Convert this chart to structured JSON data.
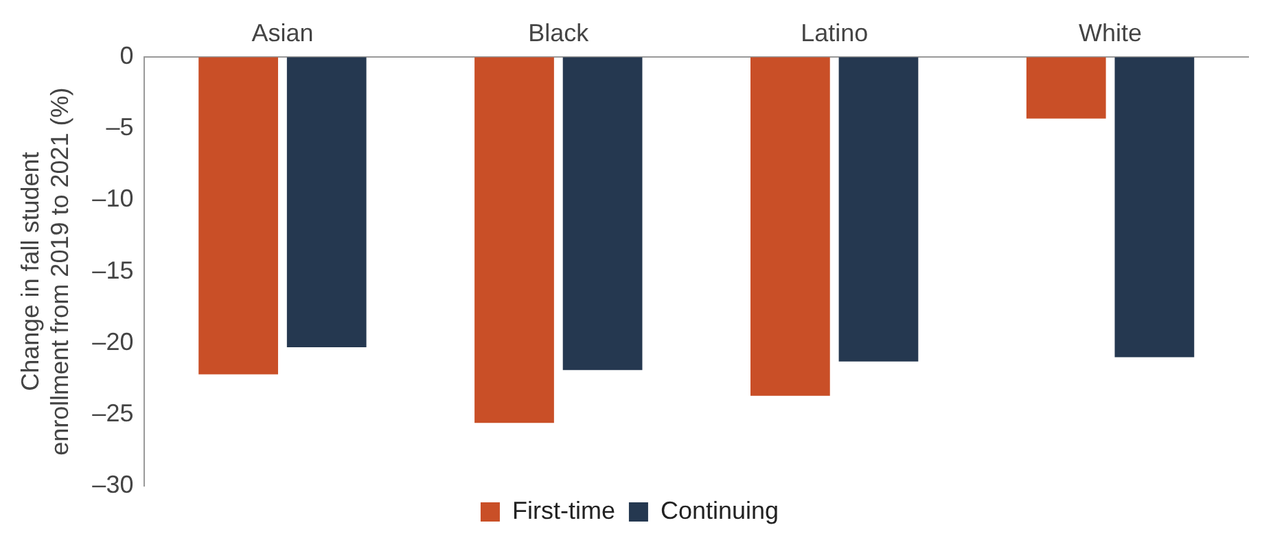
{
  "chart_data": {
    "type": "bar",
    "ylabel": "Change in fall student enrollment from 2019 to 2021 (%)",
    "categories": [
      "Asian",
      "Black",
      "Latino",
      "White"
    ],
    "series": [
      {
        "name": "First-time",
        "color": "#c94f27",
        "values": [
          -22.2,
          -25.6,
          -23.7,
          -4.3
        ]
      },
      {
        "name": "Continuing",
        "color": "#253850",
        "values": [
          -20.3,
          -21.9,
          -21.3,
          -21.0
        ]
      }
    ],
    "ylim": [
      -30,
      0
    ],
    "yticks": [
      0,
      {
        "value": -5,
        "label": "–5"
      },
      {
        "value": -10,
        "label": "–10"
      },
      {
        "value": -15,
        "label": "–15"
      },
      {
        "value": -20,
        "label": "–20"
      },
      {
        "value": -25,
        "label": "–25"
      },
      {
        "value": -30,
        "label": "–30"
      }
    ],
    "grid": false,
    "legend": "bottom"
  }
}
